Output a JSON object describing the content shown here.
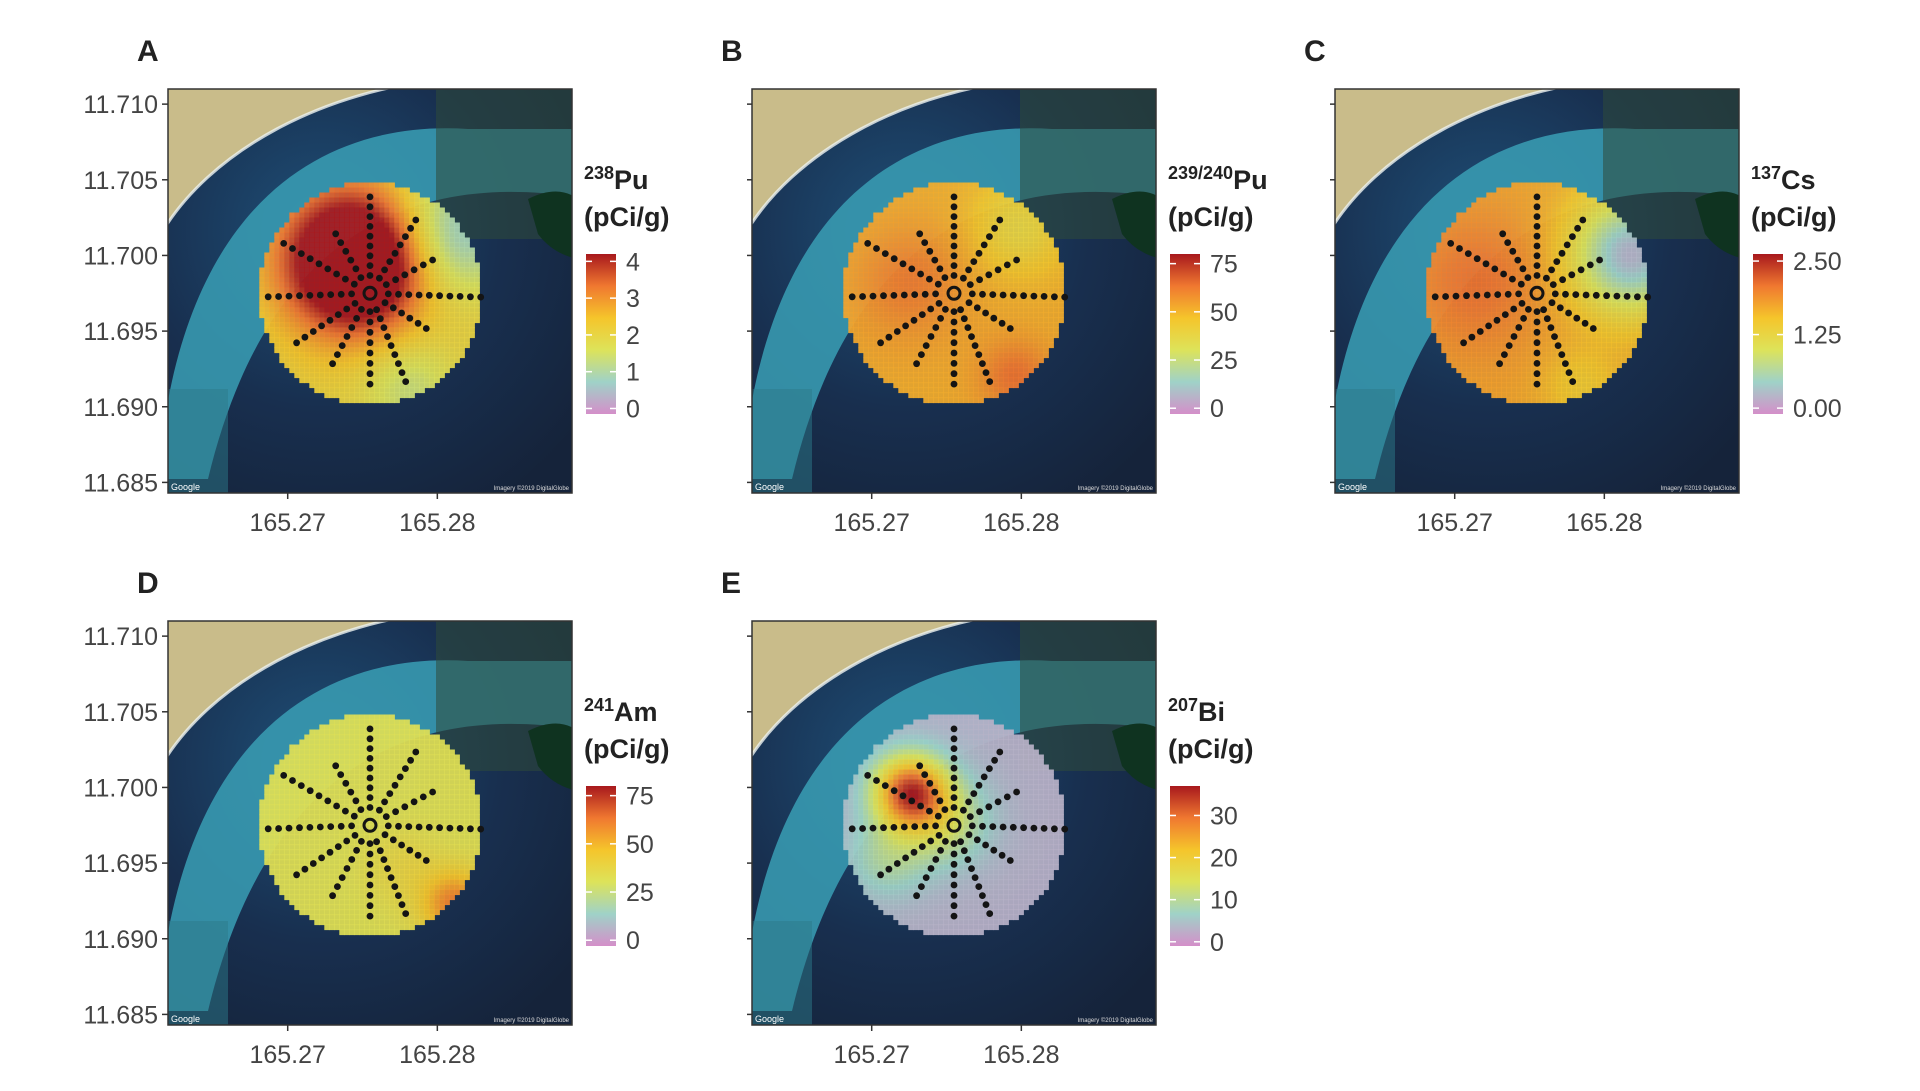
{
  "chart_data": [
    {
      "type": "heatmap",
      "panel_label": "A",
      "isotope_mass": "238",
      "isotope_symbol": "Pu",
      "unit": "(pCi/g)",
      "legend_ticks": [
        "4",
        "3",
        "2",
        "1",
        "0"
      ],
      "legend_tick_values": [
        4,
        3,
        2,
        1,
        0
      ],
      "legend_range": [
        -0.15,
        4.2
      ],
      "xlim": [
        165.262,
        165.289
      ],
      "ylim": [
        11.6843,
        11.711
      ],
      "x_tick_labels": [
        "165.27",
        "165.28"
      ],
      "x_ticks": [
        165.27,
        165.28
      ],
      "y_tick_labels": [
        "11.710",
        "11.705",
        "11.700",
        "11.695",
        "11.690",
        "11.685"
      ],
      "y_ticks": [
        11.71,
        11.705,
        11.7,
        11.695,
        11.69,
        11.685
      ],
      "map_credit": "Google",
      "imagery_credit": "Imagery ©2019 DigitalGlobe",
      "hotspots": [
        [
          -0.15,
          0.3,
          0.9,
          3.8
        ],
        [
          -0.05,
          0.15,
          0.6,
          0.5
        ],
        [
          0.75,
          0.55,
          0.8,
          -1.6
        ],
        [
          0.35,
          -0.85,
          0.6,
          -0.8
        ]
      ],
      "base_value": 2.1
    },
    {
      "type": "heatmap",
      "panel_label": "B",
      "isotope_mass": "239/240",
      "isotope_symbol": "Pu",
      "unit": "(pCi/g)",
      "legend_ticks": [
        "75",
        "50",
        "25",
        "0"
      ],
      "legend_tick_values": [
        75,
        50,
        25,
        0
      ],
      "legend_range": [
        -3,
        80
      ],
      "xlim": [
        165.262,
        165.289
      ],
      "ylim": [
        11.6843,
        11.711
      ],
      "x_tick_labels": [
        "165.27",
        "165.28"
      ],
      "x_ticks": [
        165.27,
        165.28
      ],
      "y_tick_labels": [],
      "y_ticks": [],
      "map_credit": "Google",
      "imagery_credit": "Imagery ©2019 DigitalGlobe",
      "hotspots": [
        [
          -0.4,
          0.1,
          0.7,
          10
        ],
        [
          0.55,
          -0.75,
          0.45,
          12
        ],
        [
          0.6,
          0.6,
          0.6,
          -14
        ]
      ],
      "base_value": 52
    },
    {
      "type": "heatmap",
      "panel_label": "C",
      "isotope_mass": "137",
      "isotope_symbol": "Cs",
      "unit": "(pCi/g)",
      "legend_ticks": [
        "2.50",
        "1.25",
        "0.00"
      ],
      "legend_tick_values": [
        2.5,
        1.25,
        0
      ],
      "legend_range": [
        -0.1,
        2.62
      ],
      "xlim": [
        165.262,
        165.289
      ],
      "ylim": [
        11.6843,
        11.711
      ],
      "x_tick_labels": [
        "165.27",
        "165.28"
      ],
      "x_ticks": [
        165.27,
        165.28
      ],
      "y_tick_labels": [],
      "y_ticks": [],
      "map_credit": "Google",
      "imagery_credit": "Imagery ©2019 DigitalGlobe",
      "hotspots": [
        [
          -0.55,
          0.1,
          0.9,
          0.35
        ],
        [
          0.85,
          0.35,
          0.75,
          -1.55
        ],
        [
          0.4,
          -0.85,
          0.5,
          -0.3
        ]
      ],
      "base_value": 1.75
    },
    {
      "type": "heatmap",
      "panel_label": "D",
      "isotope_mass": "241",
      "isotope_symbol": "Am",
      "unit": "(pCi/g)",
      "legend_ticks": [
        "75",
        "50",
        "25",
        "0"
      ],
      "legend_tick_values": [
        75,
        50,
        25,
        0
      ],
      "legend_range": [
        -3,
        80
      ],
      "xlim": [
        165.262,
        165.289
      ],
      "ylim": [
        11.6843,
        11.711
      ],
      "x_tick_labels": [
        "165.27",
        "165.28"
      ],
      "x_ticks": [
        165.27,
        165.28
      ],
      "y_tick_labels": [
        "11.710",
        "11.705",
        "11.700",
        "11.695",
        "11.690",
        "11.685"
      ],
      "y_ticks": [
        11.71,
        11.705,
        11.7,
        11.695,
        11.69,
        11.685
      ],
      "map_credit": "Google",
      "imagery_credit": "Imagery ©2019 DigitalGlobe",
      "hotspots": [
        [
          0.78,
          -0.72,
          0.42,
          30
        ],
        [
          0.3,
          -0.4,
          0.5,
          6
        ]
      ],
      "base_value": 32
    },
    {
      "type": "heatmap",
      "panel_label": "E",
      "isotope_mass": "207",
      "isotope_symbol": "Bi",
      "unit": "(pCi/g)",
      "legend_ticks": [
        "30",
        "20",
        "10",
        "0"
      ],
      "legend_tick_values": [
        30,
        20,
        10,
        0
      ],
      "legend_range": [
        -1,
        37
      ],
      "xlim": [
        165.262,
        165.289
      ],
      "ylim": [
        11.6843,
        11.711
      ],
      "x_tick_labels": [
        "165.27",
        "165.28"
      ],
      "x_ticks": [
        165.27,
        165.28
      ],
      "y_tick_labels": [],
      "y_ticks": [],
      "map_credit": "Google",
      "imagery_credit": "Imagery ©2019 DigitalGlobe",
      "hotspots": [
        [
          -0.4,
          0.3,
          0.45,
          30
        ],
        [
          -0.1,
          0.05,
          0.55,
          10
        ],
        [
          -0.6,
          -0.3,
          0.5,
          6
        ]
      ],
      "base_value": 3
    }
  ],
  "sampling": {
    "center": [
      165.2755,
      11.6975
    ],
    "radius_deg": 0.0074,
    "transect_angles_deg": [
      0,
      32,
      62,
      92,
      122,
      158,
      180,
      208,
      236,
      268,
      300,
      330
    ],
    "transect_lengths": [
      0.87,
      0.78,
      0.64,
      1.0,
      0.6,
      0.86,
      0.82,
      0.72,
      0.8,
      0.92,
      0.9,
      0.62
    ]
  },
  "colors": {
    "colormap": [
      "#d48fc9",
      "#9fd2c8",
      "#dde35a",
      "#f5c52b",
      "#f07830",
      "#a8191d"
    ],
    "deep_water": "#15233a",
    "lagoon": "#1a4a70",
    "reef": "#3a9fb5",
    "land": "#c9bc8a",
    "sample_dot": "#141414"
  }
}
